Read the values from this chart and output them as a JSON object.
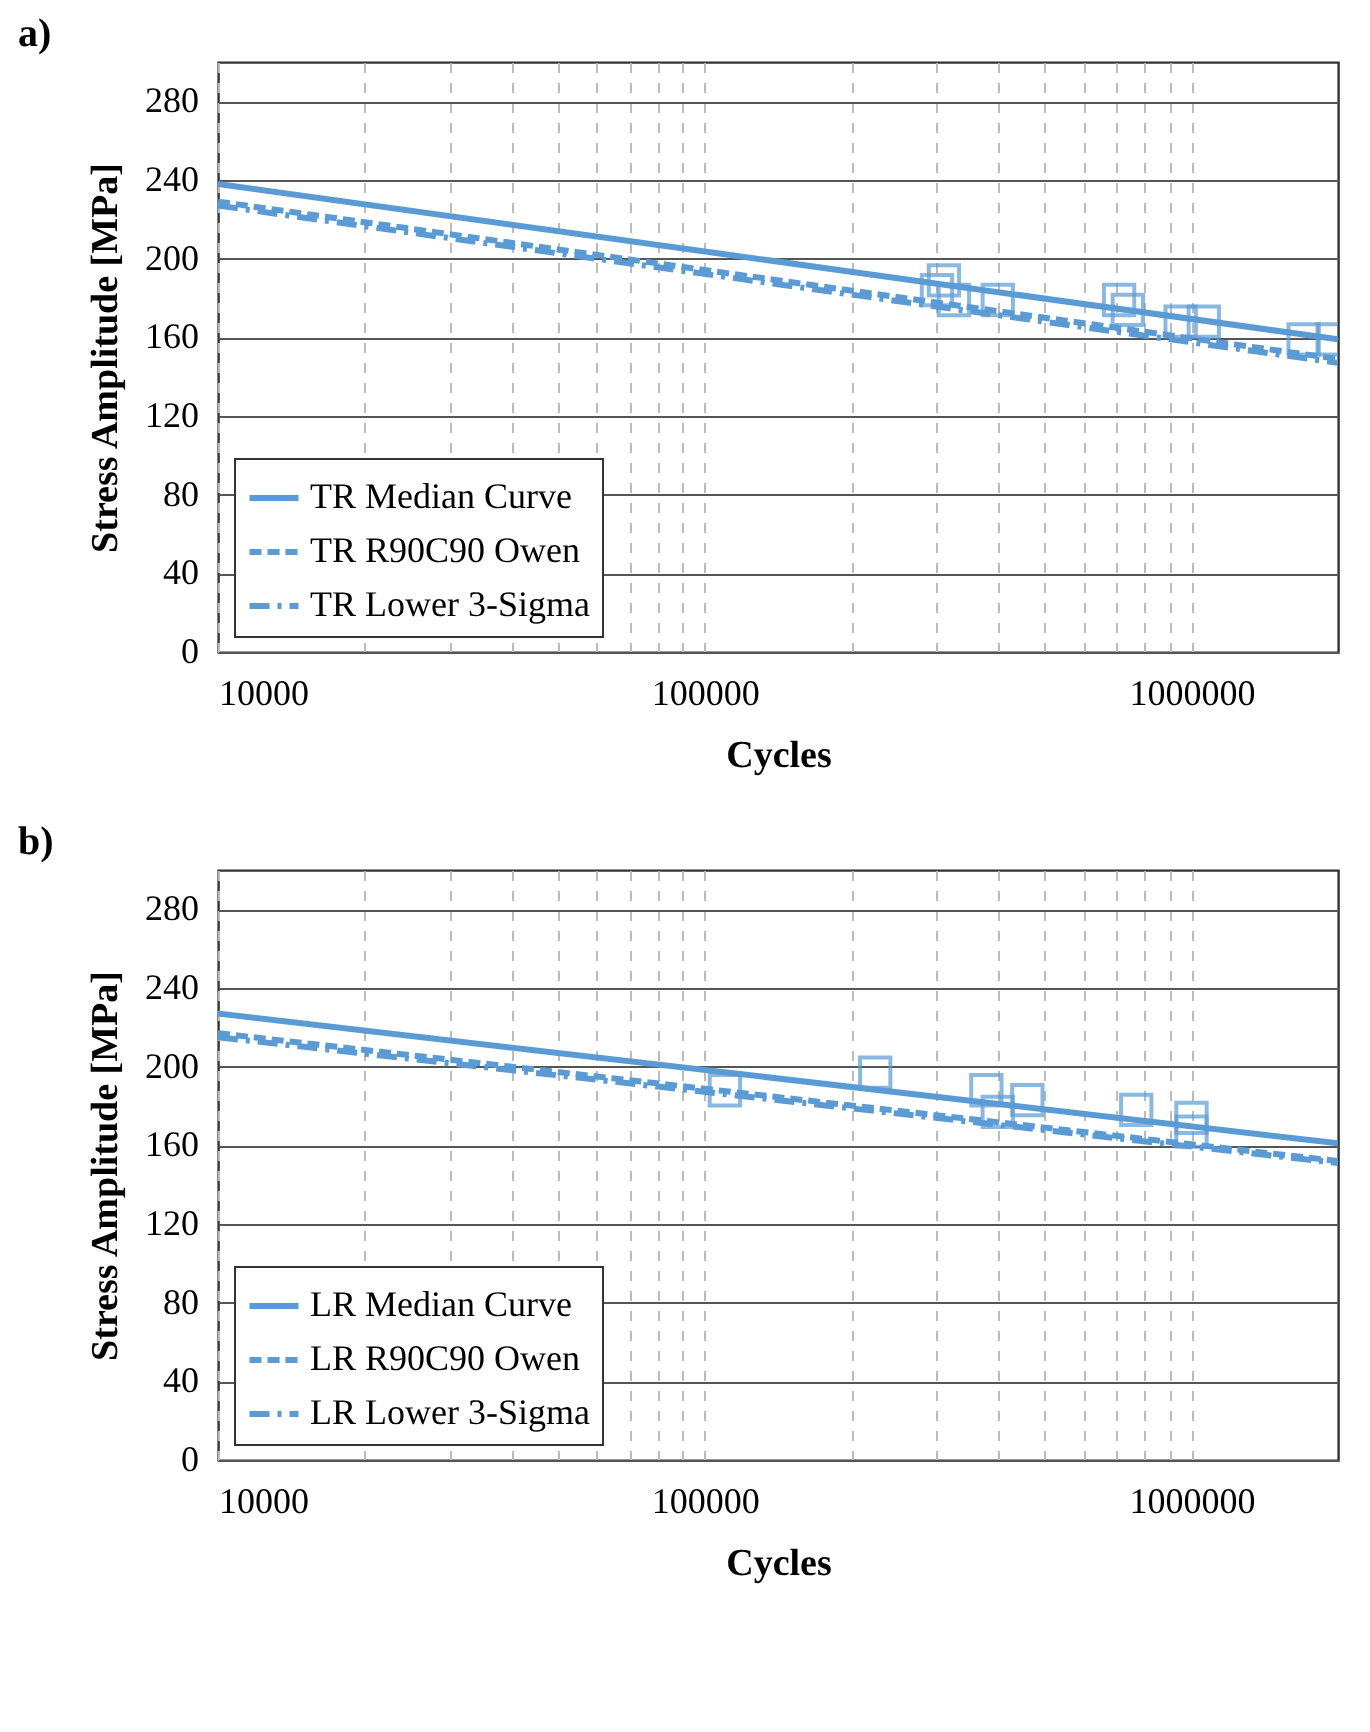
{
  "chart_data": [
    {
      "type": "line",
      "title": "a)",
      "xlabel": "Cycles",
      "ylabel": "Stress Amplitude [MPa]",
      "log": "x",
      "xlim": [
        10000,
        2000000
      ],
      "xticks": [
        10000,
        {
          "value": 20000,
          "label": null
        },
        {
          "value": 30000,
          "label": null
        },
        {
          "value": 40000,
          "label": null
        },
        {
          "value": 50000,
          "label": null
        },
        {
          "value": 60000,
          "label": null
        },
        {
          "value": 70000,
          "label": null
        },
        {
          "value": 80000,
          "label": null
        },
        {
          "value": 90000,
          "label": null
        },
        100000,
        {
          "value": 200000,
          "label": null
        },
        {
          "value": 300000,
          "label": null
        },
        {
          "value": 400000,
          "label": null
        },
        {
          "value": 500000,
          "label": null
        },
        {
          "value": 600000,
          "label": null
        },
        {
          "value": 700000,
          "label": null
        },
        {
          "value": 800000,
          "label": null
        },
        {
          "value": 900000,
          "label": null
        },
        1000000
      ],
      "ylim": [
        0,
        300
      ],
      "yticks": [
        0,
        40,
        80,
        120,
        160,
        200,
        240,
        280
      ],
      "grid": true,
      "legend": "bottom left",
      "series": [
        {
          "name": "TR Median Curve",
          "color": "#5b9bd5",
          "line_style": "solid",
          "x": [
            10000,
            2000000
          ],
          "values": [
            238,
            159
          ]
        },
        {
          "name": "TR R90C90 Owen",
          "color": "#5b9bd5",
          "line_style": "dashed",
          "x": [
            10000,
            2000000
          ],
          "values": [
            229,
            149
          ]
        },
        {
          "name": "TR Lower 3-Sigma",
          "color": "#5b9bd5",
          "line_style": "dashdot",
          "x": [
            10000,
            2000000
          ],
          "values": [
            227,
            147
          ]
        },
        {
          "type": "scatter",
          "marker": "square",
          "color": "#5b9bd5",
          "x": [
            310000,
            300000,
            325000,
            400000,
            710000,
            740000,
            950000,
            1060000,
            1700000,
            1950000
          ],
          "values": [
            189,
            184,
            179,
            179,
            179,
            174,
            168,
            168,
            159,
            159
          ]
        }
      ]
    },
    {
      "type": "line",
      "title": "b)",
      "xlabel": "Cycles",
      "ylabel": "Stress Amplitude [MPa]",
      "log": "x",
      "xlim": [
        10000,
        2000000
      ],
      "xticks": [
        10000,
        {
          "value": 20000,
          "label": null
        },
        {
          "value": 30000,
          "label": null
        },
        {
          "value": 40000,
          "label": null
        },
        {
          "value": 50000,
          "label": null
        },
        {
          "value": 60000,
          "label": null
        },
        {
          "value": 70000,
          "label": null
        },
        {
          "value": 80000,
          "label": null
        },
        {
          "value": 90000,
          "label": null
        },
        100000,
        {
          "value": 200000,
          "label": null
        },
        {
          "value": 300000,
          "label": null
        },
        {
          "value": 400000,
          "label": null
        },
        {
          "value": 500000,
          "label": null
        },
        {
          "value": 600000,
          "label": null
        },
        {
          "value": 700000,
          "label": null
        },
        {
          "value": 800000,
          "label": null
        },
        {
          "value": 900000,
          "label": null
        },
        1000000
      ],
      "ylim": [
        0,
        300
      ],
      "yticks": [
        0,
        40,
        80,
        120,
        160,
        200,
        240,
        280
      ],
      "grid": true,
      "legend": "bottom left",
      "series": [
        {
          "name": "LR Median Curve",
          "color": "#5b9bd5",
          "line_style": "solid",
          "x": [
            10000,
            2000000
          ],
          "values": [
            227,
            161
          ]
        },
        {
          "name": "LR R90C90 Owen",
          "color": "#5b9bd5",
          "line_style": "dashed",
          "x": [
            10000,
            2000000
          ],
          "values": [
            217,
            152
          ]
        },
        {
          "name": "LR Lower 3-Sigma",
          "color": "#5b9bd5",
          "line_style": "dashdot",
          "x": [
            10000,
            2000000
          ],
          "values": [
            215,
            151
          ]
        },
        {
          "type": "scatter",
          "marker": "square",
          "color": "#5b9bd5",
          "x": [
            110000,
            224000,
            379000,
            400000,
            460000,
            770000,
            1000000,
            1000000
          ],
          "values": [
            188,
            197,
            188,
            177,
            183,
            178,
            174,
            167
          ]
        }
      ]
    }
  ]
}
